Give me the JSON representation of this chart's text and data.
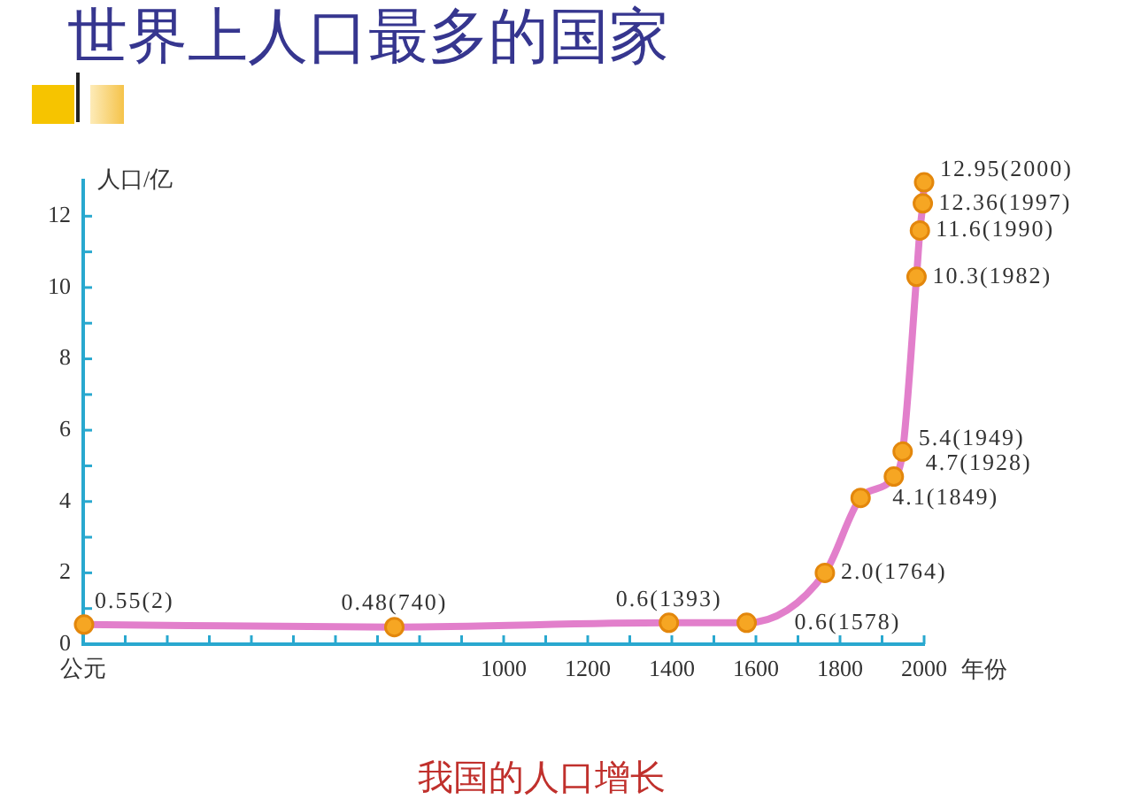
{
  "chart_data": {
    "type": "line",
    "title": "世界上人口最多的国家",
    "xlabel": "年份",
    "ylabel": "人口/亿",
    "annotations": [
      "我国的人口增长"
    ],
    "x": [
      2,
      740,
      1393,
      1578,
      1764,
      1849,
      1928,
      1949,
      1982,
      1990,
      1997,
      2000
    ],
    "series": [
      {
        "color": "#e27fcb",
        "values": [
          0.55,
          0.48,
          0.6,
          0.6,
          2.0,
          4.1,
          4.7,
          5.4,
          10.3,
          11.6,
          12.36,
          12.95
        ],
        "value_labels": [
          "0.55(2)",
          "0.48(740)",
          "0.6(1393)",
          "0.6(1578)",
          "2.0(1764)",
          "4.1(1849)",
          "4.7(1928)",
          "5.4(1949)",
          "10.3(1982)",
          "11.6(1990)",
          "12.36(1997)",
          "12.95(2000)"
        ]
      }
    ],
    "xlim": [
      0,
      2000
    ],
    "xticks": [
      {
        "value": 0,
        "label": "公元"
      },
      {
        "value": 100,
        "label": null
      },
      {
        "value": 200,
        "label": null
      },
      {
        "value": 300,
        "label": null
      },
      {
        "value": 400,
        "label": null
      },
      {
        "value": 500,
        "label": null
      },
      {
        "value": 600,
        "label": null
      },
      {
        "value": 700,
        "label": null
      },
      {
        "value": 800,
        "label": null
      },
      {
        "value": 900,
        "label": null
      },
      1000,
      {
        "value": 1100,
        "label": null
      },
      1200,
      {
        "value": 1300,
        "label": null
      },
      1400,
      {
        "value": 1500,
        "label": null
      },
      1600,
      {
        "value": 1700,
        "label": null
      },
      1800,
      {
        "value": 1900,
        "label": null
      },
      2000
    ],
    "ylim": [
      0,
      13
    ],
    "yticks": [
      0,
      {
        "value": 1,
        "label": null
      },
      2,
      {
        "value": 3,
        "label": null
      },
      4,
      {
        "value": 5,
        "label": null
      },
      6,
      {
        "value": 7,
        "label": null
      },
      8,
      {
        "value": 9,
        "label": null
      },
      10,
      {
        "value": 11,
        "label": null
      },
      12
    ],
    "marker": "circle",
    "line_style": "solid"
  }
}
